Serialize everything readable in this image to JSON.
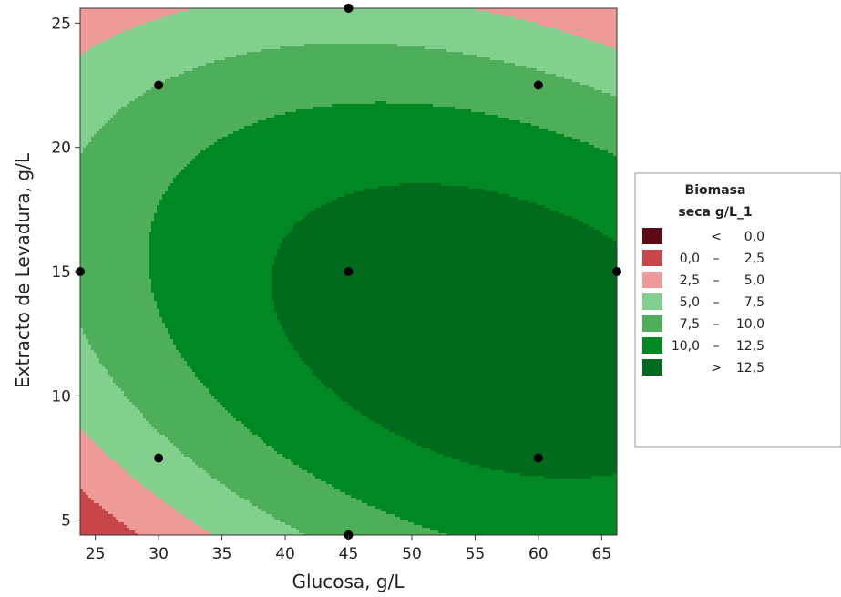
{
  "chart_data": {
    "type": "contour",
    "xlabel": "Glucosa, g/L",
    "ylabel": "Extracto de Levadura, g/L",
    "xlim": [
      23.8,
      66.2
    ],
    "ylim": [
      4.4,
      25.6
    ],
    "xticks": [
      25,
      30,
      35,
      40,
      45,
      50,
      55,
      60,
      65
    ],
    "yticks": [
      5,
      10,
      15,
      20,
      25
    ],
    "x_tick_labels": [
      "25",
      "30",
      "35",
      "40",
      "45",
      "50",
      "55",
      "60",
      "65"
    ],
    "y_tick_labels": [
      "5",
      "10",
      "15",
      "20",
      "25"
    ],
    "levels": [
      0,
      2.5,
      5,
      7.5,
      10,
      12.5
    ],
    "legend": {
      "title_line1": "Biomasa",
      "title_line2": "seca g/L_1",
      "placement": "right",
      "entries": [
        {
          "op_left": "",
          "op_mid": "<",
          "right": "0,0",
          "color": "#5c0a14"
        },
        {
          "op_left": "0,0",
          "op_mid": "–",
          "right": "2,5",
          "color": "#c8464a"
        },
        {
          "op_left": "2,5",
          "op_mid": "–",
          "right": "5,0",
          "color": "#ee9a98"
        },
        {
          "op_left": "5,0",
          "op_mid": "–",
          "right": "7,5",
          "color": "#82cf8e"
        },
        {
          "op_left": "7,5",
          "op_mid": "–",
          "right": "10,0",
          "color": "#4fae59"
        },
        {
          "op_left": "10,0",
          "op_mid": "–",
          "right": "12,5",
          "color": "#008822"
        },
        {
          "op_left": "",
          "op_mid": ">",
          "right": "12,5",
          "color": "#006b1c"
        }
      ]
    },
    "design_points": [
      {
        "x": 30,
        "y": 22.5
      },
      {
        "x": 60,
        "y": 22.5
      },
      {
        "x": 30,
        "y": 7.5
      },
      {
        "x": 60,
        "y": 7.5
      },
      {
        "x": 23.8,
        "y": 15
      },
      {
        "x": 66.2,
        "y": 15
      },
      {
        "x": 45,
        "y": 4.4
      },
      {
        "x": 45,
        "y": 25.6
      },
      {
        "x": 45,
        "y": 15
      }
    ],
    "model": {
      "center_x": 53,
      "center_y": 13,
      "peak": 14.2,
      "scale_x": 12.5,
      "scale_y": 4.2,
      "cross": 0.66,
      "tilt": 0.04
    }
  }
}
